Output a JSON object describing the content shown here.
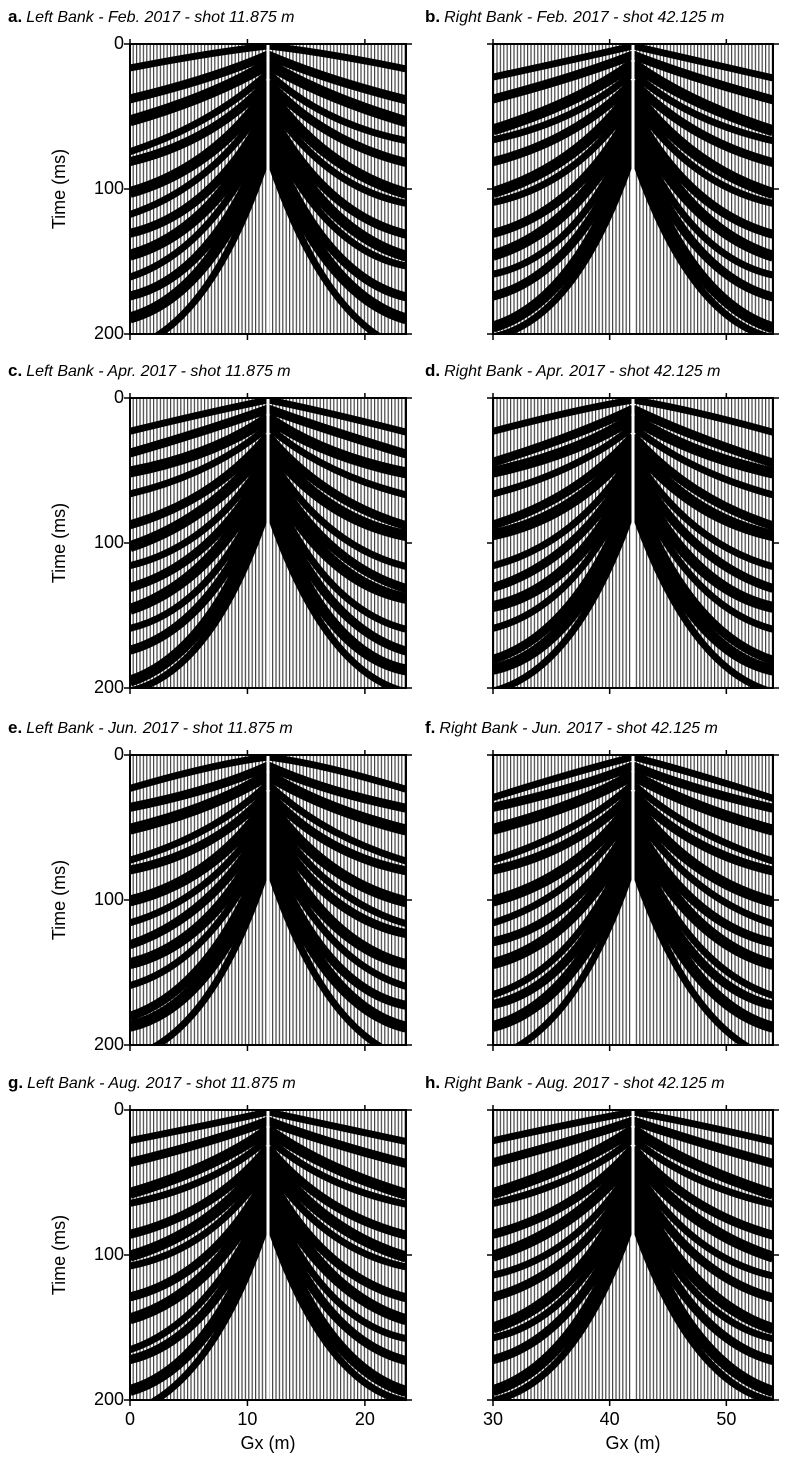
{
  "chart_data": [
    {
      "type": "seismic",
      "label": "a.",
      "title": "Left Bank - Feb. 2017 - shot 11.875 m",
      "ylabel": "Time (ms)",
      "ylim": [
        0,
        200
      ],
      "yticks": [
        0,
        100,
        200
      ],
      "xlim": [
        0,
        23.5
      ],
      "xticks": [
        0,
        10,
        20
      ],
      "ytick_labels": true,
      "xtick_labels": false
    },
    {
      "type": "seismic",
      "label": "b.",
      "title": "Right Bank - Feb. 2017 - shot 42.125 m",
      "ylim": [
        0,
        200
      ],
      "yticks": [
        0,
        100,
        200
      ],
      "xlim": [
        30,
        54
      ],
      "xticks": [
        30,
        40,
        50
      ],
      "ytick_labels": false,
      "xtick_labels": false
    },
    {
      "type": "seismic",
      "label": "c.",
      "title": "Left Bank - Apr. 2017 - shot 11.875 m",
      "ylabel": "Time (ms)",
      "ylim": [
        0,
        200
      ],
      "yticks": [
        0,
        100,
        200
      ],
      "xlim": [
        0,
        23.5
      ],
      "xticks": [
        0,
        10,
        20
      ],
      "ytick_labels": true,
      "xtick_labels": false
    },
    {
      "type": "seismic",
      "label": "d.",
      "title": "Right Bank - Apr. 2017 - shot 42.125 m",
      "ylim": [
        0,
        200
      ],
      "yticks": [
        0,
        100,
        200
      ],
      "xlim": [
        30,
        54
      ],
      "xticks": [
        30,
        40,
        50
      ],
      "ytick_labels": false,
      "xtick_labels": false
    },
    {
      "type": "seismic",
      "label": "e.",
      "title": "Left Bank - Jun. 2017 - shot 11.875 m",
      "ylabel": "Time (ms)",
      "ylim": [
        0,
        200
      ],
      "yticks": [
        0,
        100,
        200
      ],
      "xlim": [
        0,
        23.5
      ],
      "xticks": [
        0,
        10,
        20
      ],
      "ytick_labels": true,
      "xtick_labels": false
    },
    {
      "type": "seismic",
      "label": "f.",
      "title": "Right Bank - Jun. 2017 - shot 42.125 m",
      "ylim": [
        0,
        200
      ],
      "yticks": [
        0,
        100,
        200
      ],
      "xlim": [
        30,
        54
      ],
      "xticks": [
        30,
        40,
        50
      ],
      "ytick_labels": false,
      "xtick_labels": false
    },
    {
      "type": "seismic",
      "label": "g.",
      "title": "Left Bank - Aug. 2017 - shot 11.875 m",
      "ylabel": "Time (ms)",
      "xlabel": "Gx (m)",
      "ylim": [
        0,
        200
      ],
      "yticks": [
        0,
        100,
        200
      ],
      "xlim": [
        0,
        23.5
      ],
      "xticks": [
        0,
        10,
        20
      ],
      "ytick_labels": true,
      "xtick_labels": true
    },
    {
      "type": "seismic",
      "label": "h.",
      "title": "Right Bank - Aug. 2017 - shot 42.125 m",
      "xlabel": "Gx (m)",
      "ylim": [
        0,
        200
      ],
      "yticks": [
        0,
        100,
        200
      ],
      "xlim": [
        30,
        54
      ],
      "xticks": [
        30,
        40,
        50
      ],
      "ytick_labels": false,
      "xtick_labels": true
    }
  ]
}
